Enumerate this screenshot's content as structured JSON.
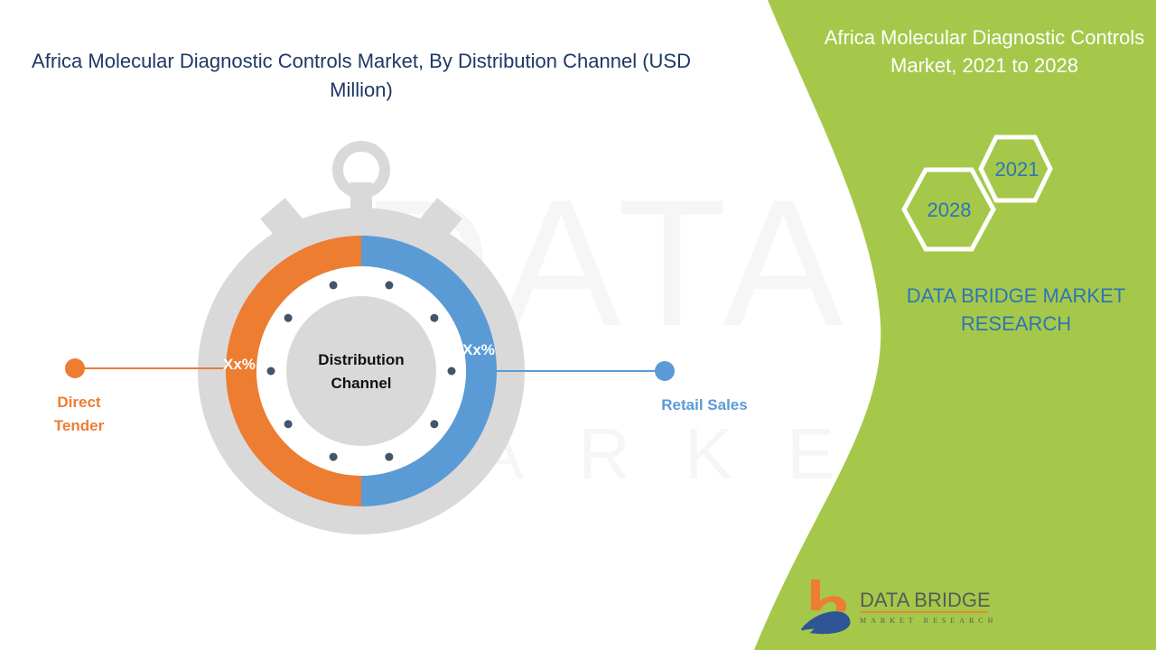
{
  "title": "Africa Molecular Diagnostic Controls Market, By Distribution Channel (USD Million)",
  "side_panel": {
    "title": "Africa Molecular Diagnostic Controls Market, 2021 to 2028",
    "years": [
      "2021",
      "2028"
    ],
    "brand_text": "DATA BRIDGE MARKET RESEARCH",
    "logo_text": "DATA BRIDGE",
    "logo_subtext": "MARKET RESEARCH",
    "color": "#a5c84a"
  },
  "chart_data": {
    "type": "pie",
    "style": "donut-stopwatch",
    "center_label": "Distribution Channel",
    "categories": [
      "Direct Tender",
      "Retail Sales"
    ],
    "data_labels": [
      "Xx%",
      "Xx%"
    ],
    "values": [
      50,
      50
    ],
    "colors": [
      "#ed7d31",
      "#5b9bd5"
    ]
  }
}
